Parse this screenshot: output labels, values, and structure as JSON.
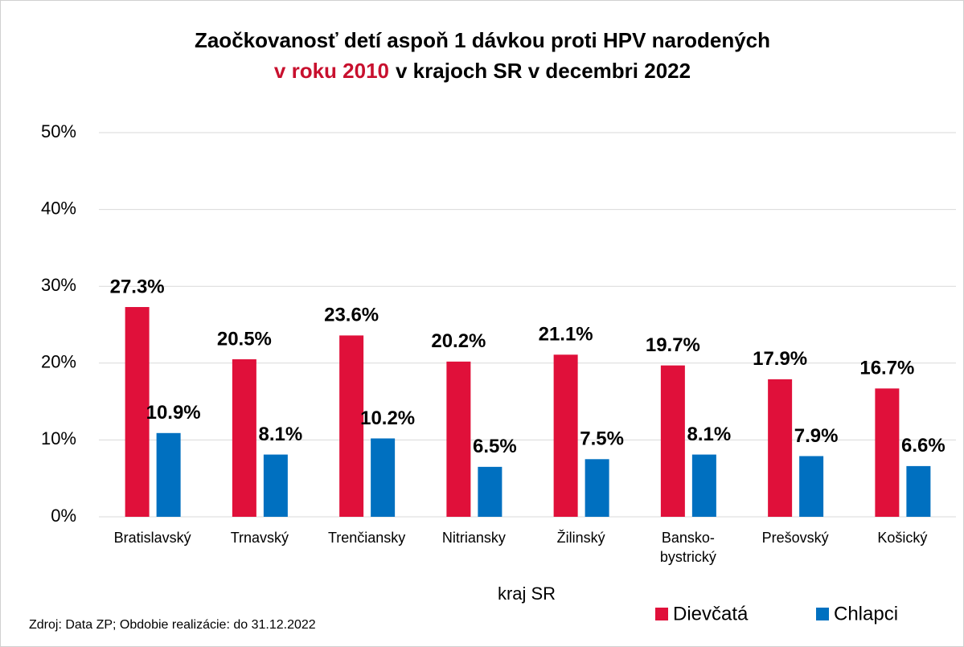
{
  "chart_data": {
    "type": "bar",
    "title": "Zaočkovanosť detí aspoň 1 dávkou proti HPV narodených",
    "title_highlight": "v roku 2010",
    "title_highlight_color": "#c8102e",
    "title_rest": "v krajoch SR v decembri 2022",
    "categories": [
      [
        "Bratislavský"
      ],
      [
        "Trnavský"
      ],
      [
        "Trenčiansky"
      ],
      [
        "Nitriansky"
      ],
      [
        "Žilinský"
      ],
      [
        "Bansko-",
        "bystrický"
      ],
      [
        "Prešovský"
      ],
      [
        "Košický"
      ]
    ],
    "series": [
      {
        "name": "Dievčatá",
        "color": "#e0103a",
        "label_color": "#c8102e",
        "values": [
          27.3,
          20.5,
          23.6,
          20.2,
          21.1,
          19.7,
          17.9,
          16.7
        ],
        "value_labels": [
          "27.3%",
          "20.5%",
          "23.6%",
          "20.2%",
          "21.1%",
          "19.7%",
          "17.9%",
          "16.7%"
        ]
      },
      {
        "name": "Chlapci",
        "color": "#0070c0",
        "label_color": "#1f5fa8",
        "values": [
          10.9,
          8.1,
          10.2,
          6.5,
          7.5,
          8.1,
          7.9,
          6.6
        ],
        "value_labels": [
          "10.9%",
          "8.1%",
          "10.2%",
          "6.5%",
          "7.5%",
          "8.1%",
          "7.9%",
          "6.6%"
        ]
      }
    ],
    "x_label": "kraj SR",
    "source": "Zdroj: Data ZP; Obdobie realizácie: do 31.12.2022",
    "ylim": [
      0,
      50
    ],
    "yticks": [
      {
        "value": 0,
        "label": "0%"
      },
      {
        "value": 10,
        "label": "10%"
      },
      {
        "value": 20,
        "label": "20%"
      },
      {
        "value": 30,
        "label": "30%"
      },
      {
        "value": 40,
        "label": "40%"
      },
      {
        "value": 50,
        "label": "50%"
      }
    ],
    "grid": true,
    "legend": "bottom-right"
  }
}
